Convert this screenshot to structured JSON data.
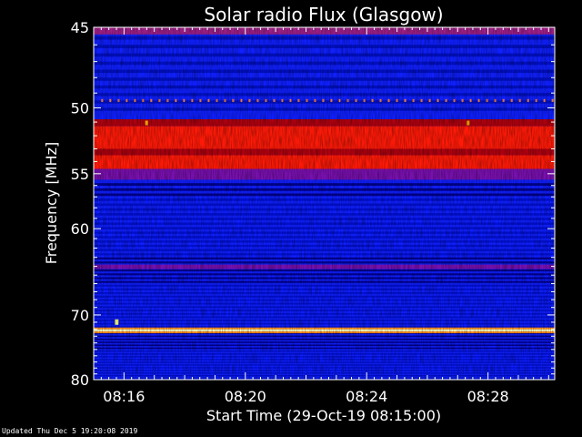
{
  "chart_data": {
    "type": "heatmap",
    "title": "Solar radio Flux (Glasgow)",
    "xlabel": "Start Time (29-Oct-19 08:15:00)",
    "ylabel": "Frequency [MHz]",
    "x_unit": "minutes after 08:15:00",
    "xlim": [
      0,
      15.2
    ],
    "ylim": [
      80,
      45
    ],
    "y_axis_scale": "reciprocal",
    "xticks": [
      {
        "value": 1,
        "label": "08:16"
      },
      {
        "value": 5,
        "label": "08:20"
      },
      {
        "value": 9,
        "label": "08:24"
      },
      {
        "value": 13,
        "label": "08:28"
      }
    ],
    "yticks": [
      {
        "value": 45,
        "label": "45"
      },
      {
        "value": 50,
        "label": "50"
      },
      {
        "value": 55,
        "label": "55"
      },
      {
        "value": 60,
        "label": "60"
      },
      {
        "value": 70,
        "label": "70"
      },
      {
        "value": 80,
        "label": "80"
      }
    ],
    "colormap": [
      "#000080",
      "#1020ff",
      "#8000a0",
      "#ff0000",
      "#ffff00",
      "#ffffff"
    ],
    "bands": [
      {
        "from": 45.0,
        "to": 45.4,
        "level": "magenta"
      },
      {
        "from": 49.4,
        "to": 49.6,
        "level": "dotted-orange"
      },
      {
        "from": 50.8,
        "to": 51.3,
        "level": "dark-red"
      },
      {
        "from": 51.3,
        "to": 53.0,
        "level": "red"
      },
      {
        "from": 53.0,
        "to": 53.5,
        "level": "dark-red"
      },
      {
        "from": 53.5,
        "to": 54.6,
        "level": "red"
      },
      {
        "from": 54.6,
        "to": 55.5,
        "level": "purple"
      },
      {
        "from": 63.8,
        "to": 64.3,
        "level": "purple"
      },
      {
        "from": 72.0,
        "to": 72.3,
        "level": "yellow-white"
      }
    ]
  },
  "footer": "Updated Thu Dec  5 19:20:08 2019"
}
